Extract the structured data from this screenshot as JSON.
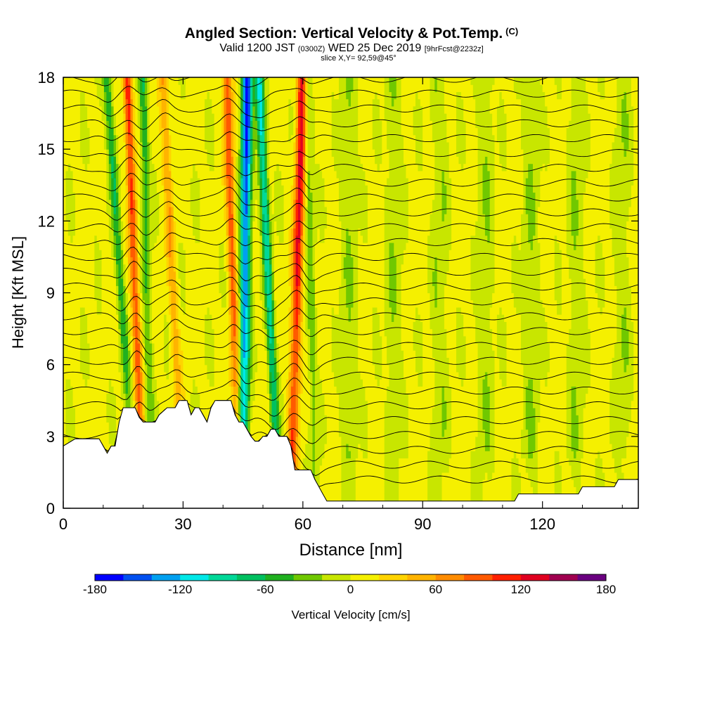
{
  "chart_data": {
    "type": "heatmap",
    "title": "Angled Section: Vertical Velocity & Pot.Temp.",
    "title_unit": "(C)",
    "subtitle_main": "Valid 1200 JST",
    "subtitle_utc": "(0300Z)",
    "subtitle_date": "WED 25 Dec 2019",
    "subtitle_fcst": "[9hrFcst@2232z]",
    "slice_label": "slice X,Y= 92,59@45°",
    "xlabel": "Distance [nm]",
    "ylabel": "Height [Kft MSL]",
    "xlim": [
      0,
      144
    ],
    "ylim": [
      0,
      18
    ],
    "x_ticks": [
      "0",
      "30",
      "60",
      "90",
      "120"
    ],
    "x_tick_values": [
      0,
      30,
      60,
      90,
      120
    ],
    "y_ticks": [
      "0",
      "3",
      "6",
      "9",
      "12",
      "15",
      "18"
    ],
    "y_tick_values": [
      0,
      3,
      6,
      9,
      12,
      15,
      18
    ],
    "colorbar": {
      "label": "Vertical Velocity [cm/s]",
      "range": [
        -180,
        180
      ],
      "tick_labels": [
        "-180",
        "-120",
        "-60",
        "0",
        "60",
        "120",
        "180"
      ],
      "tick_values": [
        -180,
        -120,
        -60,
        0,
        60,
        120,
        180
      ],
      "colors": [
        "#0000ff",
        "#0050f0",
        "#00a0f0",
        "#00e8e8",
        "#00d898",
        "#00c060",
        "#20b020",
        "#70c800",
        "#c8e600",
        "#f5f000",
        "#ffd400",
        "#ffb400",
        "#ff8c00",
        "#ff5a00",
        "#ff2000",
        "#e00020",
        "#a00050",
        "#6a0080"
      ]
    },
    "terrain": [
      [
        0,
        2.6
      ],
      [
        3,
        2.9
      ],
      [
        9,
        2.9
      ],
      [
        10,
        2.6
      ],
      [
        11,
        2.3
      ],
      [
        12,
        2.6
      ],
      [
        13,
        2.6
      ],
      [
        14,
        3.6
      ],
      [
        15,
        4.2
      ],
      [
        18,
        4.2
      ],
      [
        19,
        3.8
      ],
      [
        20,
        3.6
      ],
      [
        23,
        3.6
      ],
      [
        24,
        3.9
      ],
      [
        26,
        4.2
      ],
      [
        28,
        4.2
      ],
      [
        29,
        4.5
      ],
      [
        31,
        4.5
      ],
      [
        32,
        3.9
      ],
      [
        33,
        4.2
      ],
      [
        34,
        4.2
      ],
      [
        35,
        3.9
      ],
      [
        36,
        3.6
      ],
      [
        37,
        4.2
      ],
      [
        38,
        4.5
      ],
      [
        42,
        4.5
      ],
      [
        43,
        3.9
      ],
      [
        44,
        3.6
      ],
      [
        45,
        3.6
      ],
      [
        46,
        3.3
      ],
      [
        47,
        3.0
      ],
      [
        48,
        2.8
      ],
      [
        49,
        2.8
      ],
      [
        50,
        3.0
      ],
      [
        51,
        3.0
      ],
      [
        52,
        3.3
      ],
      [
        53,
        3.3
      ],
      [
        54,
        3.0
      ],
      [
        56,
        3.0
      ],
      [
        57,
        2.6
      ],
      [
        58,
        1.6
      ],
      [
        59,
        1.6
      ],
      [
        60,
        1.6
      ],
      [
        61,
        1.6
      ],
      [
        62,
        1.6
      ],
      [
        63,
        1.2
      ],
      [
        64,
        0.9
      ],
      [
        65,
        0.6
      ],
      [
        66,
        0.3
      ],
      [
        113,
        0.3
      ],
      [
        114,
        0.6
      ],
      [
        129,
        0.6
      ],
      [
        130,
        0.9
      ],
      [
        138,
        0.9
      ],
      [
        139,
        1.2
      ],
      [
        144,
        1.2
      ]
    ],
    "updrafts_cm_s": [
      {
        "x_top": 16,
        "x_bottom": 20,
        "peak": 110
      },
      {
        "x_top": 25,
        "x_bottom": 30,
        "peak": 60
      },
      {
        "x_top": 41,
        "x_bottom": 44,
        "peak": 100
      },
      {
        "x_top": 60,
        "x_bottom": 57,
        "peak": 140
      }
    ],
    "downdrafts_cm_s": [
      {
        "x_top": 11,
        "x_bottom": 18,
        "peak": -70
      },
      {
        "x_top": 20,
        "x_bottom": 22,
        "peak": -60
      },
      {
        "x_top": 46,
        "x_bottom": 45,
        "peak": -180
      },
      {
        "x_top": 49,
        "x_bottom": 54,
        "peak": -120
      },
      {
        "x_top": 61,
        "x_bottom": 63,
        "peak": -50
      }
    ],
    "theta_contours_c": [
      3,
      5,
      7,
      9,
      11,
      13,
      15,
      17,
      19,
      21,
      23,
      25,
      27,
      29,
      31,
      33,
      35,
      37,
      39,
      41,
      43,
      45,
      47,
      49,
      51,
      53,
      55,
      57
    ]
  }
}
